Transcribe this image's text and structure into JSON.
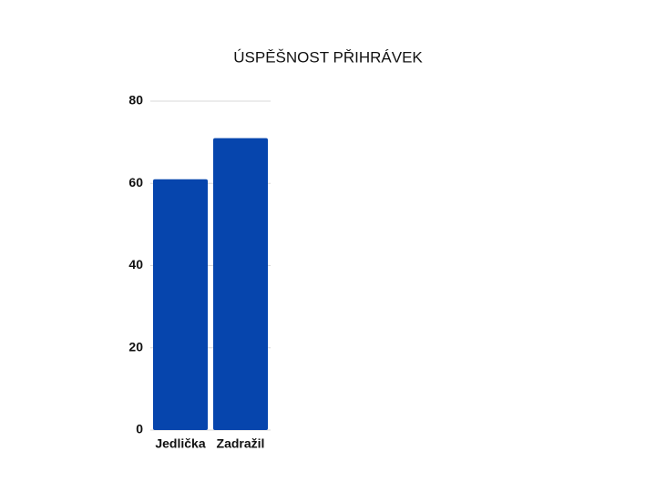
{
  "chart_data": {
    "type": "bar",
    "title": "ÚSPĚŠNOST PŘIHRÁVEK",
    "categories": [
      "Jedlička",
      "Zadražil"
    ],
    "values": [
      61,
      71
    ],
    "color": "#0645ad",
    "ylim": [
      0,
      80
    ],
    "yticks": [
      0,
      20,
      40,
      60,
      80
    ],
    "grid": true
  }
}
